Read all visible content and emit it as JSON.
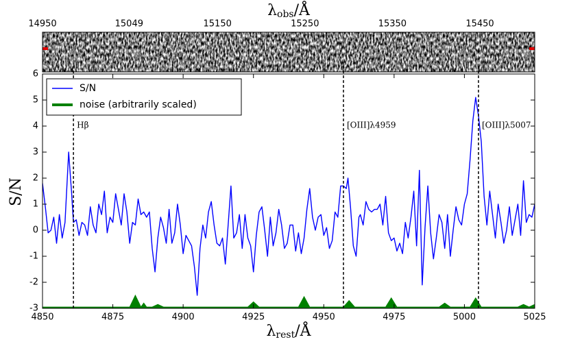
{
  "chart_data": {
    "type": "line",
    "top_label": {
      "symbol": "λ",
      "sub": "obs",
      "tail": "/Å"
    },
    "x_label": {
      "symbol": "λ",
      "sub": "rest",
      "tail": "/Å"
    },
    "y_label": "S/N",
    "xlim": [
      4850,
      5025
    ],
    "xticks": [
      4850,
      4875,
      4900,
      4925,
      4950,
      4975,
      5000,
      5025
    ],
    "ylim": [
      -3,
      6
    ],
    "yticks": [
      -3,
      -2,
      -1,
      0,
      1,
      2,
      3,
      4,
      5,
      6
    ],
    "x2lim": [
      14950,
      15512.7
    ],
    "x2ticks": [
      14950,
      15049,
      15150,
      15250,
      15350,
      15450
    ],
    "legend": "upper left",
    "lines": [
      {
        "x": 4861,
        "label": "Hβ"
      },
      {
        "x": 4957,
        "label": "[OIII]λ4959"
      },
      {
        "x": 5005,
        "label": "[OIII]λ5007"
      }
    ],
    "series": [
      {
        "name": "S/N",
        "color": "#0000ff",
        "fill": false,
        "x": [
          4850,
          4851,
          4852,
          4853,
          4854,
          4855,
          4856,
          4857,
          4858,
          4859.3,
          4860.3,
          4861,
          4862,
          4863,
          4864,
          4865,
          4866,
          4867,
          4868,
          4869,
          4870,
          4871,
          4872,
          4873,
          4874,
          4875,
          4876,
          4877,
          4878,
          4879,
          4880,
          4881,
          4882,
          4883,
          4884,
          4885,
          4886,
          4887,
          4888,
          4889,
          4890,
          4891,
          4892,
          4893,
          4894,
          4895,
          4896,
          4897,
          4898,
          4899,
          4900,
          4901,
          4902,
          4903,
          4904,
          4905,
          4906,
          4907,
          4908,
          4909,
          4910,
          4911,
          4912,
          4913,
          4914,
          4915,
          4916,
          4917,
          4918,
          4919,
          4920,
          4921,
          4922,
          4923,
          4924,
          4925,
          4926,
          4927,
          4928,
          4929,
          4930,
          4931,
          4932,
          4933,
          4934,
          4935,
          4936,
          4937,
          4938,
          4939,
          4940,
          4941,
          4942,
          4943,
          4944,
          4945,
          4946,
          4947,
          4948,
          4949,
          4950,
          4951,
          4952,
          4953,
          4954,
          4955,
          4956,
          4957,
          4958,
          4958.6,
          4959.5,
          4960.5,
          4961.5,
          4962.5,
          4963,
          4964,
          4965,
          4966,
          4967,
          4968,
          4969,
          4970,
          4971,
          4972,
          4973,
          4974,
          4975,
          4976,
          4977,
          4978,
          4979,
          4980,
          4981,
          4982,
          4983,
          4984,
          4985,
          4986,
          4987,
          4988,
          4989,
          4990,
          4991,
          4992,
          4993,
          4994,
          4995,
          4996,
          4997,
          4998,
          4999,
          5000,
          5001,
          5002,
          5003,
          5004,
          5005,
          5006,
          5007,
          5008,
          5009,
          5010,
          5011,
          5012,
          5013,
          5014,
          5015,
          5016,
          5017,
          5018,
          5019,
          5020,
          5021,
          5022,
          5023,
          5024,
          5025
        ],
        "values": [
          1.8,
          0.9,
          -0.1,
          0,
          0.5,
          -0.5,
          0.6,
          -0.3,
          0.3,
          3.0,
          1.5,
          0.3,
          0.4,
          -0.2,
          0.3,
          0.2,
          -0.2,
          0.9,
          0.2,
          -0.1,
          1.0,
          0.6,
          1.5,
          -0.1,
          0.5,
          0.3,
          1.4,
          0.8,
          0.2,
          1.4,
          0.7,
          -0.5,
          0.3,
          0.2,
          1.2,
          0.6,
          0.7,
          0.5,
          0.7,
          -0.7,
          -1.6,
          -0.3,
          0.5,
          0.1,
          -0.5,
          0.8,
          -0.5,
          -0.1,
          1.0,
          0.2,
          -0.9,
          -0.2,
          -0.4,
          -0.6,
          -1.4,
          -2.5,
          -0.7,
          0.2,
          -0.3,
          0.7,
          1.1,
          0.2,
          -0.5,
          -0.6,
          -0.3,
          -1.3,
          0.2,
          1.7,
          -0.3,
          -0.1,
          0.6,
          -0.7,
          0.6,
          -0.3,
          -0.6,
          -1.6,
          -0.2,
          0.7,
          0.9,
          0,
          -1.0,
          0.5,
          -0.6,
          -0.1,
          0.8,
          0.2,
          -0.7,
          -0.5,
          0.2,
          0.2,
          -0.8,
          -0.1,
          -0.9,
          -0.3,
          0.8,
          1.6,
          0.5,
          0,
          0.5,
          0.6,
          -0.2,
          0.1,
          -0.7,
          -0.4,
          0.7,
          0.5,
          1.7,
          1.7,
          1.6,
          2.0,
          0.9,
          -0.6,
          -1.0,
          0.5,
          0.6,
          0.2,
          1.1,
          0.8,
          0.7,
          0.8,
          0.8,
          1.0,
          0.2,
          1.3,
          -0.1,
          -0.4,
          -0.3,
          -0.8,
          -0.5,
          -0.9,
          0.3,
          -0.3,
          0.5,
          1.5,
          -0.6,
          2.3,
          -2.1,
          0.1,
          1.7,
          -0.1,
          -1.1,
          -0.3,
          0.6,
          0.3,
          -0.7,
          0.6,
          -1.0,
          0,
          0.9,
          0.4,
          0.2,
          1.0,
          1.4,
          2.7,
          4.2,
          5.1,
          4.4,
          3.4,
          1.3,
          0.2,
          1.5,
          0.6,
          -0.3,
          1.0,
          0.3,
          -0.5,
          0,
          0.9,
          -0.2,
          0.4,
          1.0,
          -0.2,
          1.9,
          0.3,
          0.6,
          0.5,
          1.0
        ]
      },
      {
        "name": "noise (arbitrarily scaled)",
        "color": "#008000",
        "fill": true,
        "x": [
          4850,
          4881,
          4883,
          4885,
          4886,
          4887,
          4889,
          4891,
          4893,
          4923,
          4925,
          4927,
          4941,
          4943,
          4945,
          4957,
          4959,
          4961,
          4972,
          4974,
          4976,
          4991,
          4993,
          4995,
          5002,
          5004,
          5006,
          5019,
          5021,
          5023,
          5025
        ],
        "values": [
          -2.95,
          -2.95,
          -2.5,
          -2.95,
          -2.8,
          -2.95,
          -2.95,
          -2.85,
          -2.95,
          -2.95,
          -2.75,
          -2.95,
          -2.95,
          -2.55,
          -2.95,
          -2.95,
          -2.7,
          -2.95,
          -2.95,
          -2.6,
          -2.95,
          -2.95,
          -2.8,
          -2.95,
          -2.95,
          -2.6,
          -2.95,
          -2.95,
          -2.85,
          -2.95,
          -2.85
        ]
      }
    ]
  }
}
